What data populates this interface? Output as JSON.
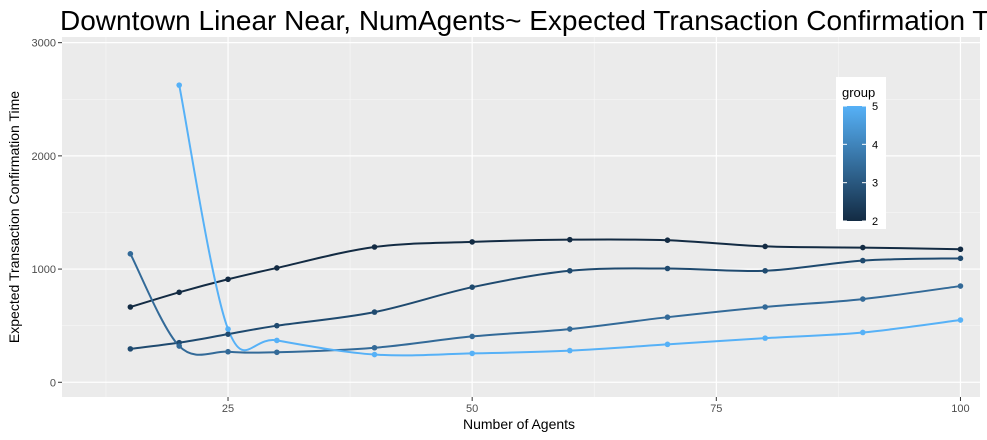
{
  "chart_data": {
    "type": "line",
    "title": "Downtown Linear Near,  NumAgents~ Expected Transaction Confirmation Time",
    "xlabel": "Number of Agents",
    "ylabel": "Expected Transaction Confirmation Time",
    "xlim": [
      8,
      102
    ],
    "ylim": [
      -130,
      3050
    ],
    "x_ticks": [
      25,
      50,
      75,
      100
    ],
    "x_tick_labels": [
      "25",
      "50",
      "75",
      "100"
    ],
    "y_ticks": [
      0,
      1000,
      2000,
      3000
    ],
    "y_tick_labels": [
      "0",
      "1000",
      "2000",
      "3000"
    ],
    "grid": true,
    "legend": {
      "title": "group",
      "position": "right",
      "labels": [
        "5",
        "4",
        "3",
        "2"
      ],
      "values": [
        5,
        4,
        3,
        2
      ],
      "low_color": "#132b43",
      "high_color": "#56b1f7"
    },
    "series": [
      {
        "group": 2,
        "color": "#132b43",
        "x": [
          15,
          20,
          25,
          30,
          40,
          50,
          60,
          70,
          80,
          90,
          100
        ],
        "y": [
          665,
          795,
          910,
          1010,
          1195,
          1240,
          1260,
          1255,
          1200,
          1190,
          1175
        ]
      },
      {
        "group": 3,
        "color": "#1f4a6f",
        "x": [
          15,
          20,
          25,
          30,
          40,
          50,
          60,
          70,
          80,
          90,
          100
        ],
        "y": [
          295,
          350,
          425,
          500,
          620,
          840,
          985,
          1005,
          985,
          1075,
          1095
        ]
      },
      {
        "group": 4,
        "color": "#336a98",
        "x": [
          15,
          20,
          25,
          30,
          40,
          50,
          60,
          70,
          80,
          90,
          100
        ],
        "y": [
          1135,
          320,
          270,
          265,
          305,
          405,
          470,
          575,
          665,
          735,
          850
        ]
      },
      {
        "group": 5,
        "color": "#56b1f7",
        "x": [
          20,
          25,
          30,
          40,
          50,
          60,
          70,
          80,
          90,
          100
        ],
        "y": [
          2625,
          470,
          370,
          245,
          255,
          280,
          335,
          390,
          440,
          550
        ]
      }
    ]
  }
}
